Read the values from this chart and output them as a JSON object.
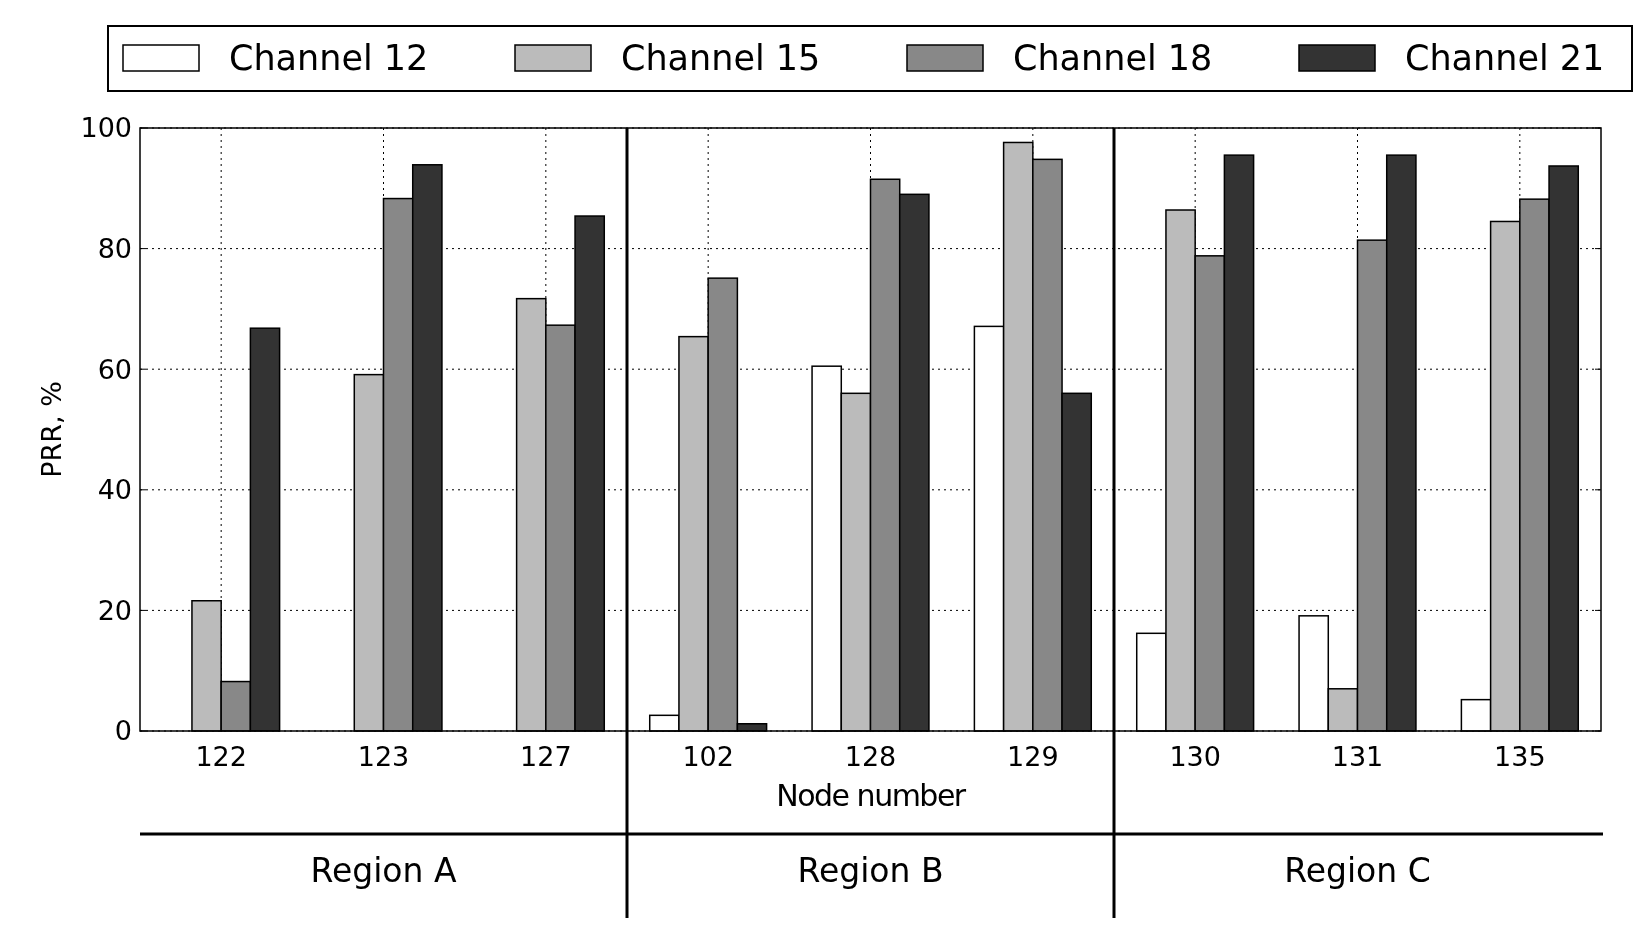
{
  "chart_data": {
    "type": "bar",
    "xlabel": "Node number",
    "ylabel": "PRR, %",
    "categories": [
      "122",
      "123",
      "127",
      "102",
      "128",
      "129",
      "130",
      "131",
      "135"
    ],
    "series": [
      {
        "name": "Channel 12",
        "color": "#ffffff",
        "values": [
          0,
          0,
          0,
          2.6,
          60.5,
          67.1,
          16.2,
          19.1,
          5.2
        ]
      },
      {
        "name": "Channel 15",
        "color": "#bbbbbb",
        "values": [
          21.6,
          59.1,
          71.7,
          65.4,
          56,
          97.6,
          86.4,
          7,
          84.5
        ]
      },
      {
        "name": "Channel 18",
        "color": "#888888",
        "values": [
          8.2,
          88.3,
          67.3,
          75.1,
          91.5,
          94.8,
          78.8,
          81.4,
          88.2
        ]
      },
      {
        "name": "Channel 21",
        "color": "#333333",
        "values": [
          66.8,
          93.9,
          85.4,
          1.2,
          89,
          56,
          95.5,
          95.5,
          93.7
        ]
      }
    ],
    "ylim": [
      0,
      100
    ],
    "yticks": [
      0,
      20,
      40,
      60,
      80,
      100
    ],
    "grid": true,
    "legend": "top",
    "annotations": [
      "Region A",
      "Region B",
      "Region C"
    ]
  }
}
